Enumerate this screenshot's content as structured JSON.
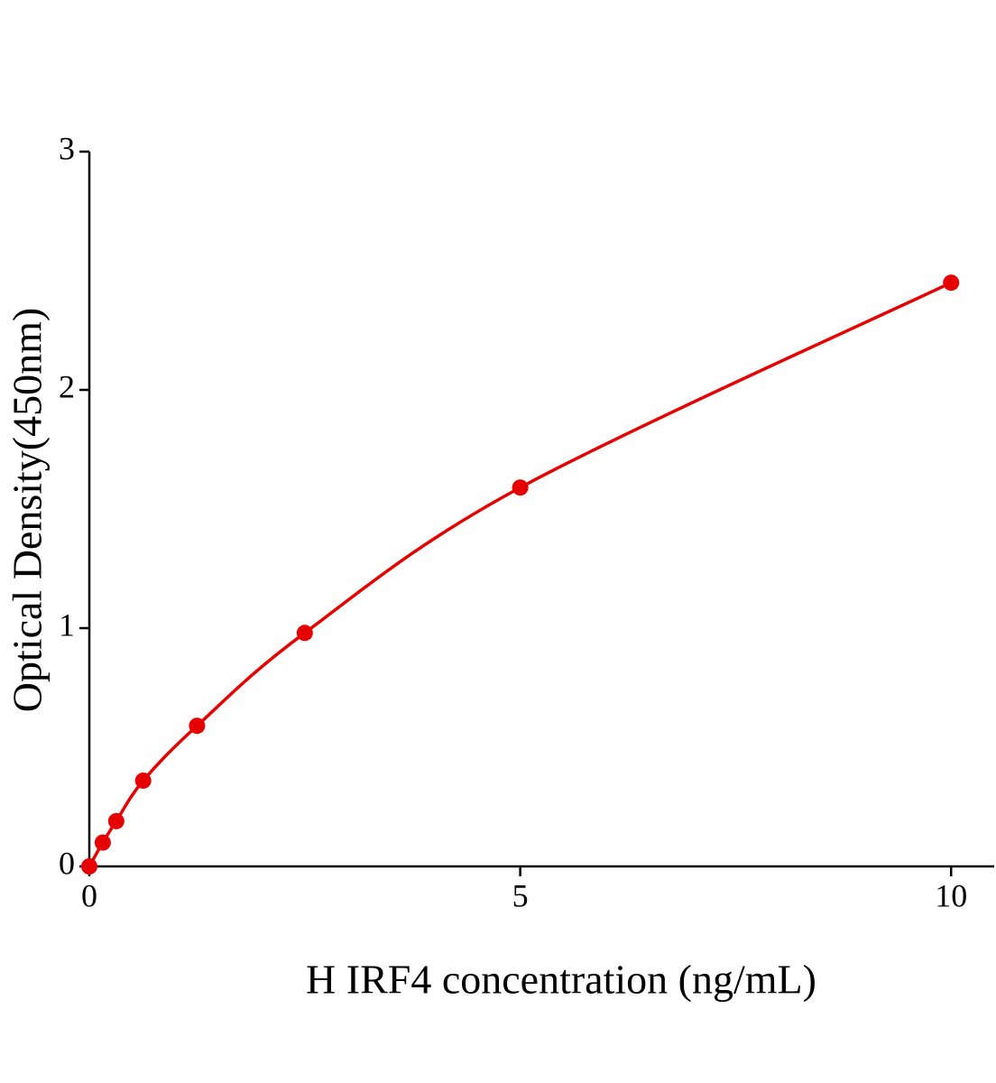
{
  "chart_data": {
    "type": "scatter",
    "x_label": "H IRF4 concentration (ng/mL)",
    "y_label": "Optical Density(450nm)",
    "x": [
      0,
      0.156,
      0.3125,
      0.625,
      1.25,
      2.5,
      5,
      10
    ],
    "series": [
      {
        "color": "#e60000",
        "values": [
          0,
          0.1,
          0.19,
          0.36,
          0.59,
          0.98,
          1.59,
          2.45
        ]
      }
    ],
    "fit_curve": true,
    "xlim": [
      0,
      10.5
    ],
    "xticks": [
      0,
      5,
      10
    ],
    "ylim": [
      0,
      3
    ],
    "yticks": [
      0,
      1,
      2,
      3
    ]
  }
}
